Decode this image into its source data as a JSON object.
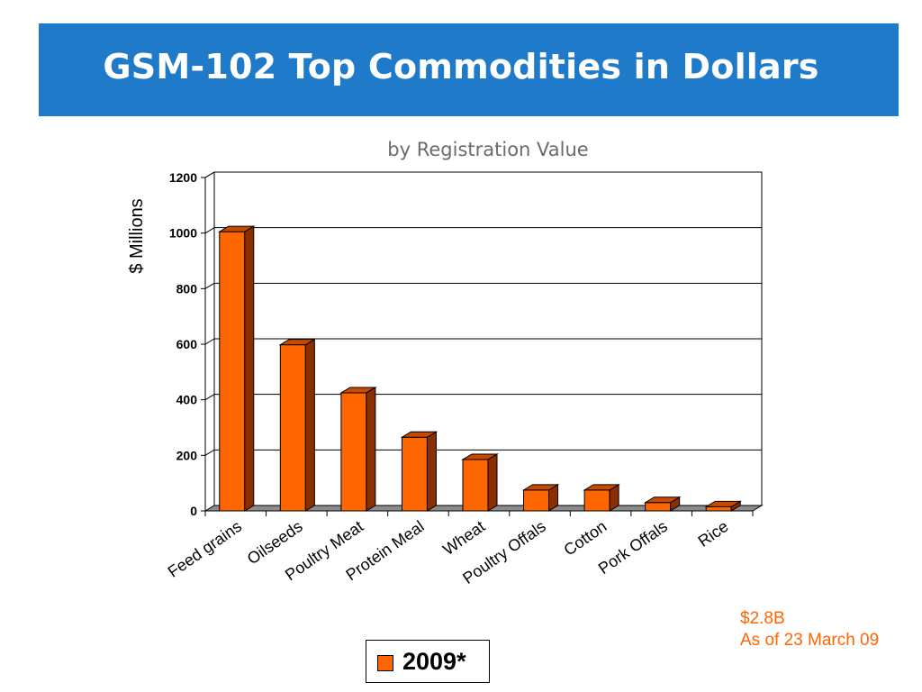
{
  "header": {
    "title": "GSM-102  Top Commodities in Dollars"
  },
  "chart_data": {
    "type": "bar",
    "subtitle": "by Registration Value",
    "ylabel": "$ Millions",
    "xlabel": "",
    "ylim": [
      0,
      1200
    ],
    "yticks": [
      0,
      200,
      400,
      600,
      800,
      1000,
      1200
    ],
    "grid": true,
    "categories": [
      "Feed grains",
      "Oilseeds",
      "Poultry Meat",
      "Protein Meal",
      "Wheat",
      "Poultry Offals",
      "Cotton",
      "Pork Offals",
      "Rice"
    ],
    "series": [
      {
        "name": "2009*",
        "values": [
          1005,
          598,
          425,
          265,
          185,
          75,
          75,
          30,
          15
        ]
      }
    ],
    "legend": "bottom",
    "bar_color": "#ff6600",
    "bar_side_color": "#8b2e00"
  },
  "notes": {
    "total": "$2.8B",
    "as_of": "As of 23 March 09"
  }
}
